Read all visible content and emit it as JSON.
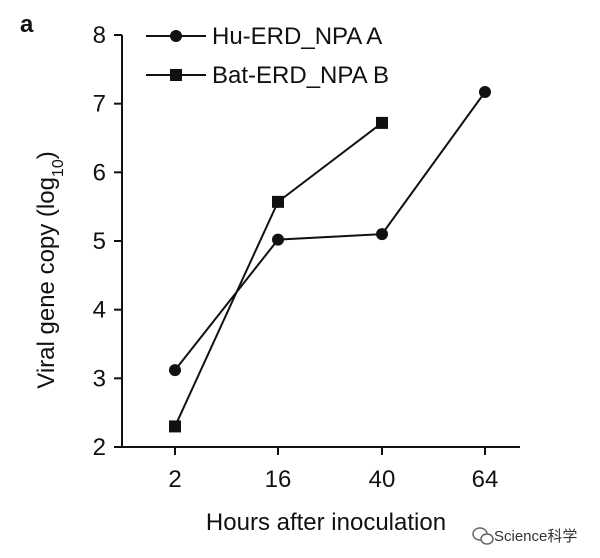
{
  "chart_data": {
    "type": "line",
    "panel_label": "a",
    "xlabel": "Hours after inoculation",
    "ylabel_main": "Viral gene copy (log",
    "ylabel_sub": "10",
    "ylabel_close": ")",
    "categories": [
      "2",
      "16",
      "40",
      "64"
    ],
    "ylim": [
      2,
      8
    ],
    "yticks": [
      2,
      3,
      4,
      5,
      6,
      7,
      8
    ],
    "grid": false,
    "legend_position": "top-left",
    "series": [
      {
        "name": "Hu-ERD_NPA A",
        "marker": "circle",
        "values": [
          3.12,
          5.02,
          5.1,
          7.17
        ]
      },
      {
        "name": "Bat-ERD_NPA B",
        "marker": "square",
        "values": [
          2.3,
          5.57,
          6.72,
          null
        ]
      }
    ]
  },
  "watermark": {
    "text": "Science科学",
    "icon": "wechat-icon"
  }
}
